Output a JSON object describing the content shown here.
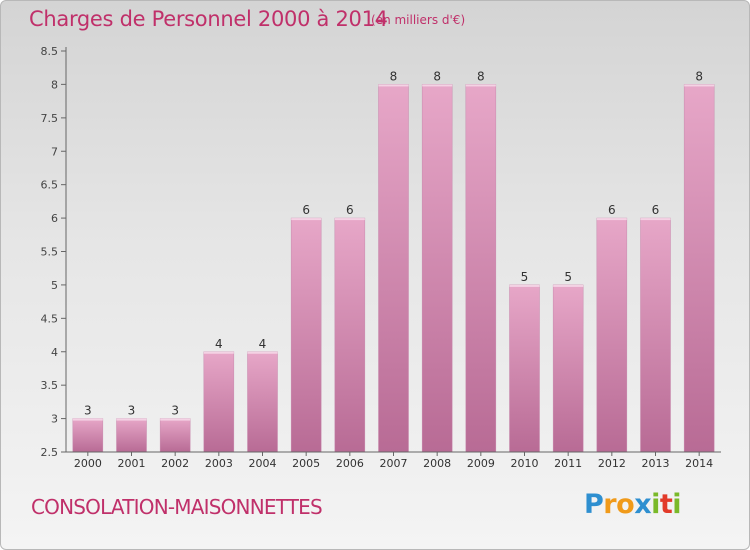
{
  "header": {
    "title": "Charges de Personnel 2000 à 2014",
    "unit_note": "(en milliers d'€)"
  },
  "footer": {
    "commune": "CONSOLATION-MAISONNETTES",
    "brand": {
      "letters": [
        "P",
        "r",
        "o",
        "x",
        "i",
        "t",
        "i"
      ],
      "colors": [
        "#2e8fd0",
        "#f09a1a",
        "#f09a1a",
        "#2e8fd0",
        "#7ab929",
        "#e23a2a",
        "#7ab929"
      ]
    }
  },
  "chart_data": {
    "type": "bar",
    "title": "Charges de Personnel 2000 à 2014",
    "subtitle": "(en milliers d'€)",
    "xlabel": "",
    "ylabel": "",
    "categories": [
      "2000",
      "2001",
      "2002",
      "2003",
      "2004",
      "2005",
      "2006",
      "2007",
      "2008",
      "2009",
      "2010",
      "2011",
      "2012",
      "2013",
      "2014"
    ],
    "values": [
      3,
      3,
      3,
      4,
      4,
      6,
      6,
      8,
      8,
      8,
      5,
      5,
      6,
      6,
      8
    ],
    "ylim": [
      2.5,
      8.5
    ],
    "yticks": [
      "2.5",
      "3",
      "3.5",
      "4",
      "4.5",
      "5",
      "5.5",
      "6",
      "6.5",
      "7",
      "7.5",
      "8",
      "8.5"
    ],
    "grid": false,
    "legend": "none",
    "bar_color": "#d88fb6",
    "label_color": "#333333"
  }
}
